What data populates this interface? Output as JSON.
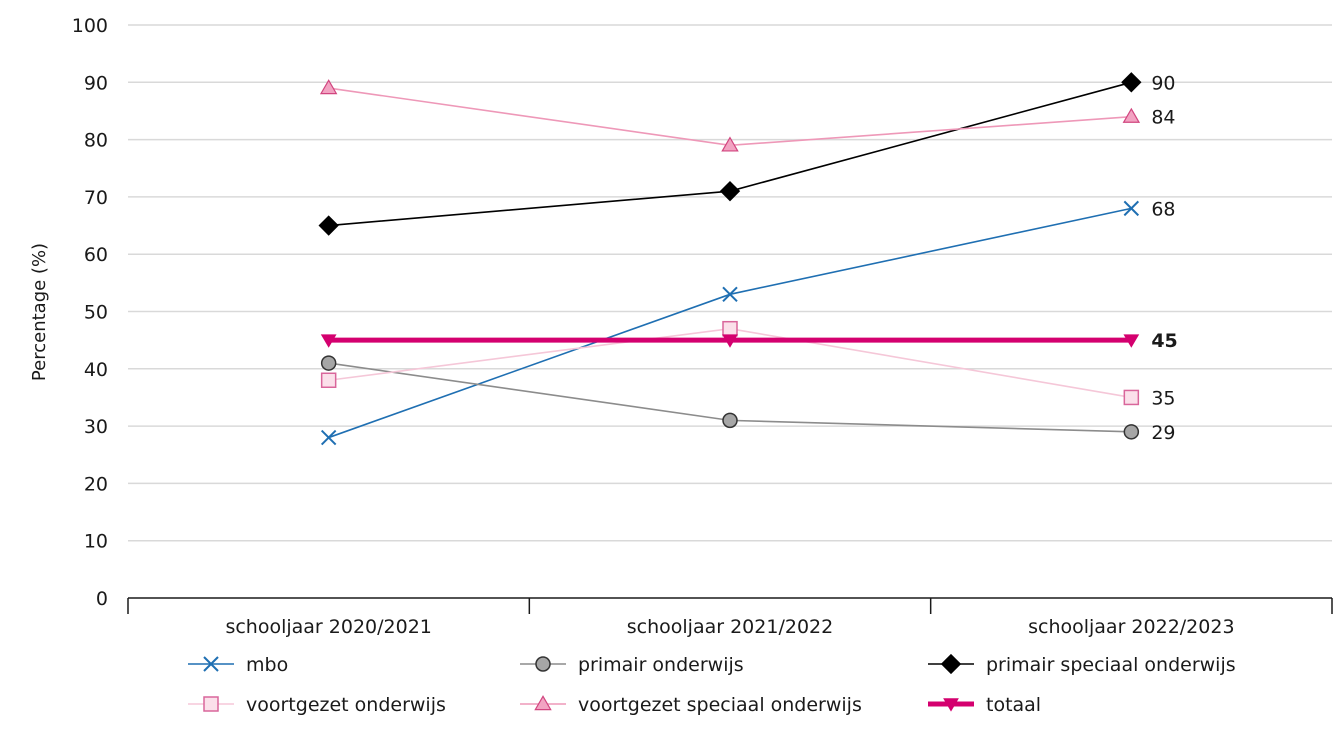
{
  "chart_data": {
    "type": "line",
    "title": "",
    "xlabel": "",
    "ylabel": "Percentage (%)",
    "ylim": [
      0,
      100
    ],
    "yticks": [
      0,
      10,
      20,
      30,
      40,
      50,
      60,
      70,
      80,
      90,
      100
    ],
    "grid": true,
    "legend_position": "bottom",
    "categories": [
      "schooljaar 2020/2021",
      "schooljaar 2021/2022",
      "schooljaar 2022/2023"
    ],
    "series": [
      {
        "name": "mbo",
        "values": [
          28,
          53,
          68
        ],
        "color": "#1f6fb2",
        "marker": "x",
        "end_label": "68",
        "end_label_bold": false
      },
      {
        "name": "primair onderwijs",
        "values": [
          41,
          31,
          29
        ],
        "color": "#8c8c8c",
        "marker_fill": "#a6a6a6",
        "marker": "circle",
        "end_label": "29",
        "end_label_bold": false
      },
      {
        "name": "primair speciaal onderwijs",
        "values": [
          65,
          71,
          90
        ],
        "color": "#000000",
        "marker": "diamond",
        "end_label": "90",
        "end_label_bold": false
      },
      {
        "name": "voortgezet onderwijs",
        "values": [
          38,
          47,
          35
        ],
        "color": "#f5c7d8",
        "marker_stroke": "#d9669b",
        "marker_fill": "#fbe0ea",
        "marker": "square",
        "end_label": "35",
        "end_label_bold": false
      },
      {
        "name": "voortgezet speciaal onderwijs",
        "values": [
          89,
          79,
          84
        ],
        "color": "#ee98b8",
        "marker_stroke": "#d1457f",
        "marker_fill": "#f2a3c2",
        "marker": "triangle-up",
        "end_label": "84",
        "end_label_bold": false
      },
      {
        "name": "totaal",
        "values": [
          45,
          45,
          45
        ],
        "color": "#d4006f",
        "marker": "triangle-down",
        "end_label": "45",
        "end_label_bold": true
      }
    ]
  }
}
